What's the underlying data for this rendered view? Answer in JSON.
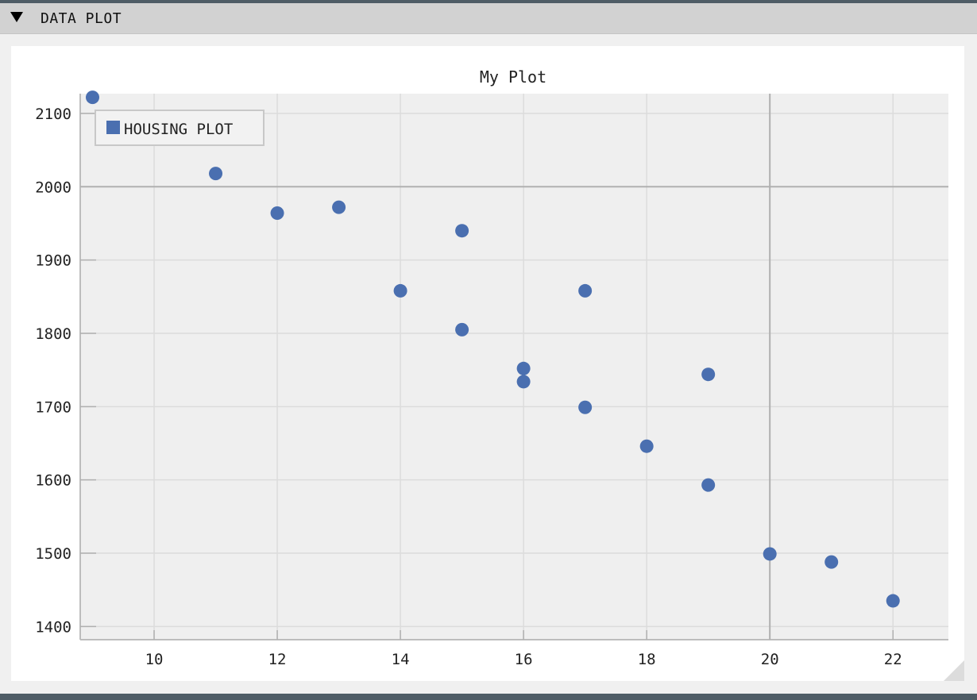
{
  "panel": {
    "title": "DATA PLOT",
    "collapse_icon": "triangle-down-icon"
  },
  "colors": {
    "point": "#4a6fb0",
    "plot_background": "#efefef",
    "grid": "#dcdcdc",
    "axis_marker": "#b0b0b0"
  },
  "chart_data": {
    "type": "scatter",
    "title": "My Plot",
    "xlabel": "",
    "ylabel": "",
    "xlim": [
      8.8,
      22.9
    ],
    "ylim": [
      1382,
      2127
    ],
    "xticks": [
      10,
      12,
      14,
      16,
      18,
      20,
      22
    ],
    "yticks": [
      1400,
      1500,
      1600,
      1700,
      1800,
      1900,
      2000,
      2100
    ],
    "axis_markers": {
      "x": 20,
      "y": 2000
    },
    "grid": true,
    "legend": {
      "position": "top-left",
      "entries": [
        "HOUSING PLOT"
      ]
    },
    "series": [
      {
        "name": "HOUSING PLOT",
        "points": [
          [
            9,
            2122
          ],
          [
            11,
            2018
          ],
          [
            12,
            1964
          ],
          [
            13,
            1972
          ],
          [
            14,
            1858
          ],
          [
            15,
            1940
          ],
          [
            15,
            1805
          ],
          [
            16,
            1752
          ],
          [
            16,
            1734
          ],
          [
            17,
            1858
          ],
          [
            17,
            1699
          ],
          [
            18,
            1646
          ],
          [
            19,
            1744
          ],
          [
            19,
            1593
          ],
          [
            20,
            1499
          ],
          [
            21,
            1488
          ],
          [
            22,
            1435
          ]
        ]
      }
    ]
  }
}
